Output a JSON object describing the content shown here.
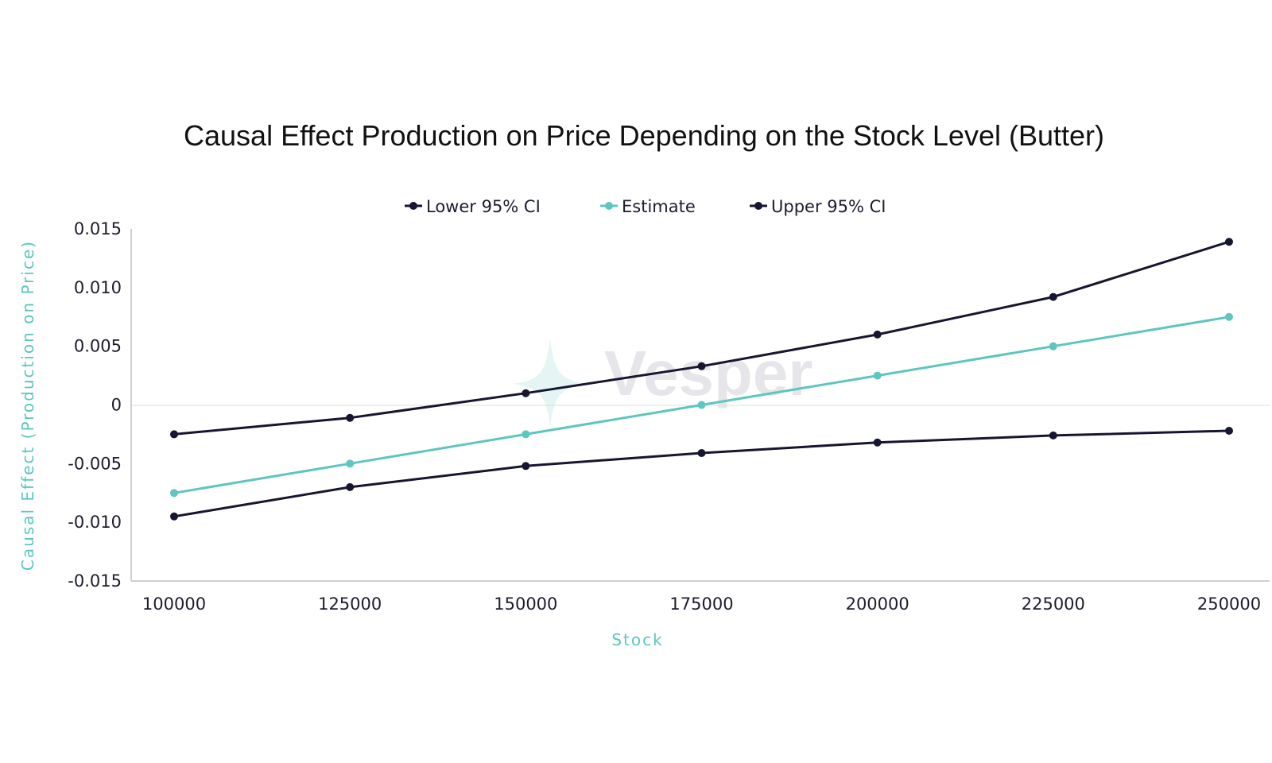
{
  "chart_data": {
    "type": "line",
    "title": "Causal Effect Production on Price Depending on the Stock Level (Butter)",
    "xlabel": "Stock",
    "ylabel": "Causal Effect (Production on Price)",
    "x": [
      100000,
      125000,
      150000,
      175000,
      200000,
      225000,
      250000
    ],
    "x_ticks": [
      "100000",
      "125000",
      "150000",
      "175000",
      "200000",
      "225000",
      "250000"
    ],
    "y_ticks": [
      "0.015",
      "0.010",
      "0.005",
      "0",
      "-0.005",
      "-0.010",
      "-0.015"
    ],
    "ylim": [
      -0.015,
      0.015
    ],
    "grid": false,
    "legend_position": "top-center",
    "series": [
      {
        "name": "Lower 95% CI",
        "color": "#161630",
        "values": [
          -0.0095,
          -0.007,
          -0.0052,
          -0.0041,
          -0.0032,
          -0.0026,
          -0.0022
        ]
      },
      {
        "name": "Estimate",
        "color": "#5cc6bf",
        "values": [
          -0.0075,
          -0.005,
          -0.0025,
          0.0,
          0.0025,
          0.005,
          0.0075
        ]
      },
      {
        "name": "Upper 95% CI",
        "color": "#161630",
        "values": [
          -0.0025,
          -0.0011,
          0.001,
          0.0033,
          0.006,
          0.0092,
          0.0139
        ]
      }
    ],
    "axis_label_color": "#5cc6bf"
  },
  "watermark": {
    "text": "Vesper",
    "icon": "sparkle-icon"
  }
}
